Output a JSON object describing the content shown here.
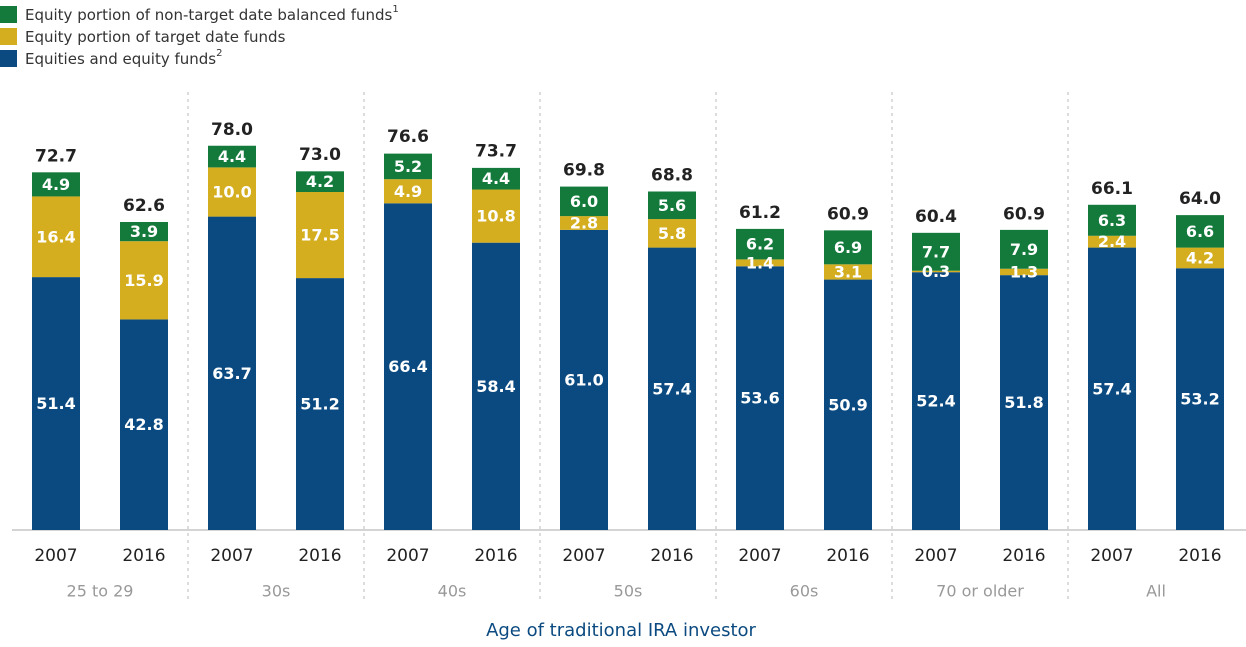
{
  "chart_data": {
    "type": "stacked_bar",
    "x_label": "Age of traditional IRA investor",
    "categories": [
      "2007",
      "2016",
      "2007",
      "2016",
      "2007",
      "2016",
      "2007",
      "2016",
      "2007",
      "2016",
      "2007",
      "2016",
      "2007",
      "2016"
    ],
    "groups": [
      "25 to 29",
      "30s",
      "40s",
      "50s",
      "60s",
      "70 or older",
      "All"
    ],
    "series": [
      {
        "name": "Equities and equity funds",
        "note": "2",
        "color": "#0b4a80",
        "values": [
          51.4,
          42.8,
          63.7,
          51.2,
          66.4,
          58.4,
          61.0,
          57.4,
          53.6,
          50.9,
          52.4,
          51.8,
          57.4,
          53.2
        ],
        "value_labels": [
          "51.4",
          "42.8",
          "63.7",
          "51.2",
          "66.4",
          "58.4",
          "61.0",
          "57.4",
          "53.6",
          "50.9",
          "52.4",
          "51.8",
          "57.4",
          "53.2"
        ]
      },
      {
        "name": "Equity portion of target date funds",
        "color": "#d4ae1e",
        "values": [
          16.4,
          15.9,
          10.0,
          17.5,
          4.9,
          10.8,
          2.8,
          5.8,
          1.4,
          3.1,
          0.3,
          1.3,
          2.4,
          4.2
        ],
        "value_labels": [
          "16.4",
          "15.9",
          "10.0",
          "17.5",
          "4.9",
          "10.8",
          "2.8",
          "5.8",
          "1.4",
          "3.1",
          "0.3",
          "1.3",
          "2.4",
          "4.2"
        ]
      },
      {
        "name": "Equity portion of non-target date balanced funds",
        "note": "1",
        "color": "#137a3b",
        "values": [
          4.9,
          3.9,
          4.4,
          4.2,
          5.2,
          4.4,
          6.0,
          5.6,
          6.2,
          6.9,
          7.7,
          7.9,
          6.3,
          6.6
        ],
        "value_labels": [
          "4.9",
          "3.9",
          "4.4",
          "4.2",
          "5.2",
          "4.4",
          "6.0",
          "5.6",
          "6.2",
          "6.9",
          "7.7",
          "7.9",
          "6.3",
          "6.6"
        ]
      }
    ],
    "totals": [
      72.7,
      62.6,
      78.0,
      73.0,
      76.6,
      73.7,
      69.8,
      68.8,
      61.2,
      60.9,
      60.4,
      60.9,
      66.1,
      64.0
    ],
    "total_labels": [
      "72.7",
      "62.6",
      "78.0",
      "73.0",
      "76.6",
      "73.7",
      "69.8",
      "68.8",
      "61.2",
      "60.9",
      "60.4",
      "60.9",
      "66.1",
      "64.0"
    ],
    "ylim": [
      0,
      100
    ]
  }
}
